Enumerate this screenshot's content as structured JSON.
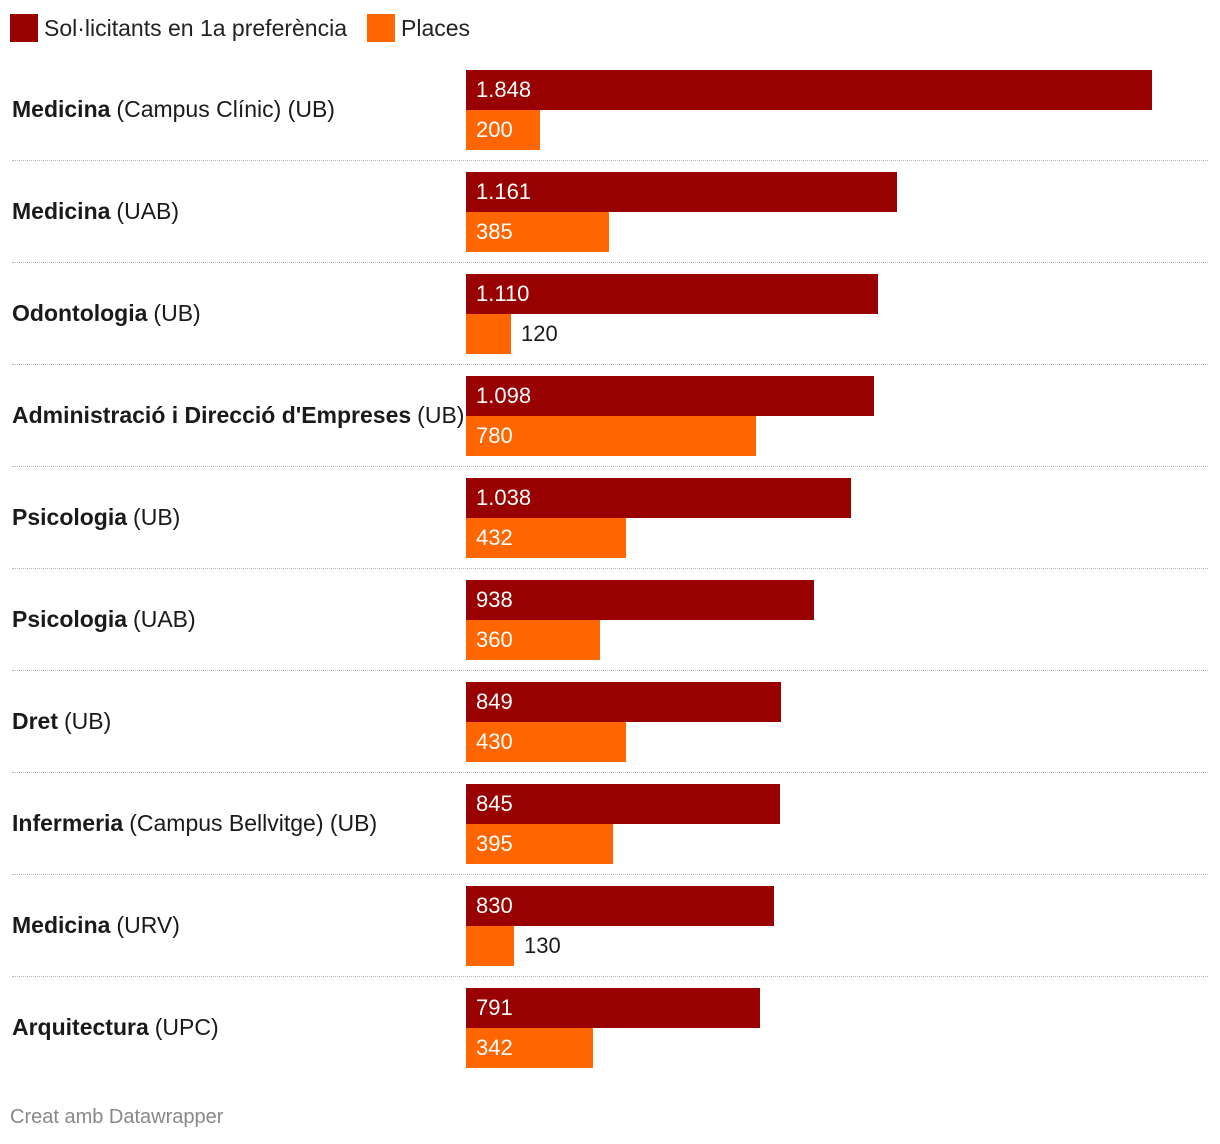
{
  "legend": {
    "series1_label": "Sol·licitants en 1a preferència",
    "series2_label": "Places"
  },
  "footer": {
    "credit": "Creat amb Datawrapper"
  },
  "colors": {
    "series1": "#990000",
    "series2": "#ff6600",
    "text_inside": "#ffffff",
    "text_outside": "#1a1a1a"
  },
  "chart_data": {
    "type": "bar",
    "orientation": "horizontal",
    "categories": [
      {
        "bold": "Medicina",
        "rest": "(Campus Clínic) (UB)"
      },
      {
        "bold": "Medicina",
        "rest": "(UAB)"
      },
      {
        "bold": "Odontologia",
        "rest": "(UB)"
      },
      {
        "bold": "Administració i Direcció d'Empreses",
        "rest": "(UB)"
      },
      {
        "bold": "Psicologia",
        "rest": "(UB)"
      },
      {
        "bold": "Psicologia",
        "rest": "(UAB)"
      },
      {
        "bold": "Dret",
        "rest": "(UB)"
      },
      {
        "bold": "Infermeria",
        "rest": "(Campus Bellvitge) (UB)"
      },
      {
        "bold": "Medicina",
        "rest": "(URV)"
      },
      {
        "bold": "Arquitectura",
        "rest": "(UPC)"
      }
    ],
    "series": [
      {
        "name": "Sol·licitants en 1a preferència",
        "values": [
          1848,
          1161,
          1110,
          1098,
          1038,
          938,
          849,
          845,
          830,
          791
        ],
        "labels": [
          "1.848",
          "1.161",
          "1.110",
          "1.098",
          "1.038",
          "938",
          "849",
          "845",
          "830",
          "791"
        ]
      },
      {
        "name": "Places",
        "values": [
          200,
          385,
          120,
          780,
          432,
          360,
          430,
          395,
          130,
          342
        ],
        "labels": [
          "200",
          "385",
          "120",
          "780",
          "432",
          "360",
          "430",
          "395",
          "130",
          "342"
        ]
      }
    ],
    "xlim": [
      0,
      1848
    ],
    "legend_position": "top-left"
  }
}
